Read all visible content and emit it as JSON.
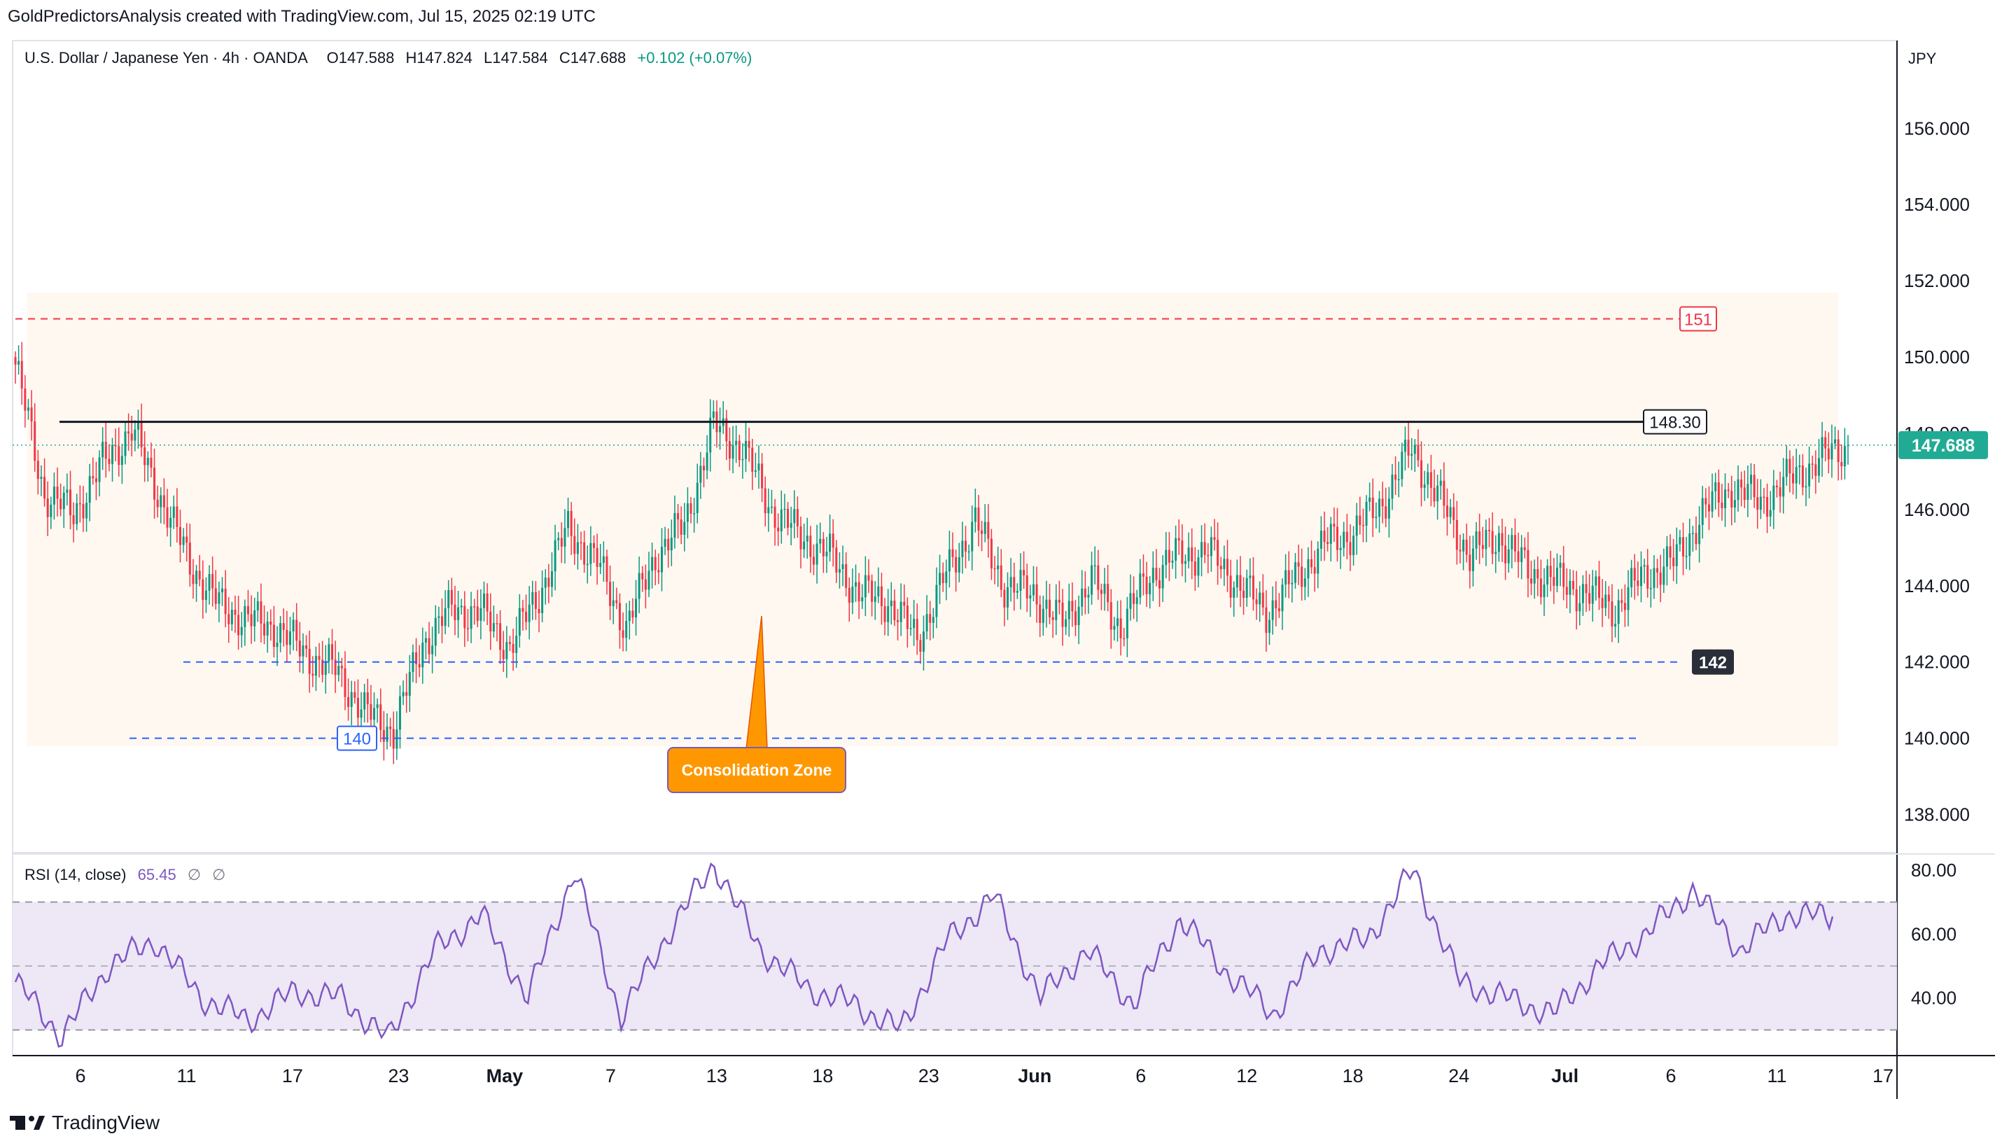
{
  "header": {
    "attribution": "GoldPredictorsAnalysis created with TradingView.com, Jul 15, 2025 02:19 UTC"
  },
  "legend": {
    "symbol": "U.S. Dollar / Japanese Yen · 4h · OANDA",
    "open": "O147.588",
    "high": "H147.824",
    "low": "L147.584",
    "close": "C147.688",
    "change": "+0.102 (+0.07%)"
  },
  "currency": "JPY",
  "rsi_legend": {
    "label": "RSI (14, close)",
    "value": "65.45",
    "na1": "∅",
    "na2": "∅"
  },
  "footer": {
    "logo_text": "TradingView",
    "logo_mark": "17"
  },
  "colors": {
    "up": "#089981",
    "down": "#f23645",
    "rsi_line": "#7e57c2",
    "rsi_band": "#ede7f6",
    "zone": "#fff8f0",
    "annotation": "#ff9800",
    "support_line": "#2962ff",
    "resistance_line": "#f23645"
  },
  "chart_data": [
    {
      "type": "candlestick",
      "title": "U.S. Dollar / Japanese Yen · 4h · OANDA",
      "ylim": [
        137.0,
        158.3
      ],
      "y_ticks": [
        "156.000",
        "154.000",
        "152.000",
        "150.000",
        "148.000",
        "146.000",
        "144.000",
        "142.000",
        "140.000",
        "138.000"
      ],
      "x_ticks": [
        "6",
        "11",
        "17",
        "23",
        "May",
        "7",
        "13",
        "18",
        "23",
        "Jun",
        "6",
        "12",
        "18",
        "24",
        "Jul",
        "6",
        "11",
        "17"
      ],
      "last_price": "147.688",
      "series": [
        {
          "x": "Apr 2",
          "y": 149.8
        },
        {
          "x": "Apr 3",
          "y": 146.4
        },
        {
          "x": "Apr 4",
          "y": 145.9
        },
        {
          "x": "Apr 6",
          "y": 147.2
        },
        {
          "x": "Apr 8",
          "y": 148.1
        },
        {
          "x": "Apr 9",
          "y": 146.3
        },
        {
          "x": "Apr 10",
          "y": 144.6
        },
        {
          "x": "Apr 11",
          "y": 143.5
        },
        {
          "x": "Apr 13",
          "y": 143.1
        },
        {
          "x": "Apr 15",
          "y": 142.9
        },
        {
          "x": "Apr 17",
          "y": 142.2
        },
        {
          "x": "Apr 19",
          "y": 141.8
        },
        {
          "x": "Apr 21",
          "y": 140.7
        },
        {
          "x": "Apr 22",
          "y": 140.2
        },
        {
          "x": "Apr 24",
          "y": 142.5
        },
        {
          "x": "Apr 26",
          "y": 143.4
        },
        {
          "x": "Apr 28",
          "y": 143.3
        },
        {
          "x": "Apr 30",
          "y": 142.4
        },
        {
          "x": "May 2",
          "y": 143.8
        },
        {
          "x": "May 3",
          "y": 145.5
        },
        {
          "x": "May 5",
          "y": 144.6
        },
        {
          "x": "May 7",
          "y": 142.9
        },
        {
          "x": "May 9",
          "y": 144.8
        },
        {
          "x": "May 10",
          "y": 145.6
        },
        {
          "x": "May 12",
          "y": 148.2
        },
        {
          "x": "May 13",
          "y": 147.6
        },
        {
          "x": "May 15",
          "y": 146.0
        },
        {
          "x": "May 17",
          "y": 145.3
        },
        {
          "x": "May 19",
          "y": 144.8
        },
        {
          "x": "May 21",
          "y": 143.8
        },
        {
          "x": "May 23",
          "y": 143.6
        },
        {
          "x": "May 25",
          "y": 142.6
        },
        {
          "x": "May 27",
          "y": 144.3
        },
        {
          "x": "May 28",
          "y": 145.7
        },
        {
          "x": "May 30",
          "y": 144.0
        },
        {
          "x": "Jun 1",
          "y": 143.8
        },
        {
          "x": "Jun 3",
          "y": 143.0
        },
        {
          "x": "Jun 4",
          "y": 144.2
        },
        {
          "x": "Jun 5",
          "y": 142.9
        },
        {
          "x": "Jun 7",
          "y": 144.3
        },
        {
          "x": "Jun 9",
          "y": 144.8
        },
        {
          "x": "Jun 11",
          "y": 144.9
        },
        {
          "x": "Jun 13",
          "y": 144.1
        },
        {
          "x": "Jun 14",
          "y": 143.3
        },
        {
          "x": "Jun 16",
          "y": 144.2
        },
        {
          "x": "Jun 18",
          "y": 145.1
        },
        {
          "x": "Jun 20",
          "y": 145.4
        },
        {
          "x": "Jun 22",
          "y": 146.2
        },
        {
          "x": "Jun 23",
          "y": 147.6
        },
        {
          "x": "Jun 24",
          "y": 146.2
        },
        {
          "x": "Jun 25",
          "y": 144.8
        },
        {
          "x": "Jun 27",
          "y": 145.3
        },
        {
          "x": "Jun 28",
          "y": 144.4
        },
        {
          "x": "Jun 30",
          "y": 144.1
        },
        {
          "x": "Jul 2",
          "y": 143.8
        },
        {
          "x": "Jul 3",
          "y": 143.4
        },
        {
          "x": "Jul 4",
          "y": 144.3
        },
        {
          "x": "Jul 6",
          "y": 144.6
        },
        {
          "x": "Jul 7",
          "y": 145.9
        },
        {
          "x": "Jul 8",
          "y": 146.6
        },
        {
          "x": "Jul 10",
          "y": 146.2
        },
        {
          "x": "Jul 11",
          "y": 146.8
        },
        {
          "x": "Jul 13",
          "y": 147.3
        },
        {
          "x": "Jul 14",
          "y": 147.688
        }
      ],
      "levels": [
        {
          "label": "151",
          "value": 151.0,
          "style": "dashed",
          "color": "#f23645"
        },
        {
          "label": "148.30",
          "value": 148.3,
          "style": "solid",
          "color": "#131722"
        },
        {
          "label": "142",
          "value": 142.0,
          "style": "dashed",
          "color": "#2962ff"
        },
        {
          "label": "140",
          "value": 140.0,
          "style": "dashed",
          "color": "#2962ff"
        }
      ],
      "annotations": [
        {
          "text": "Consolidation Zone"
        }
      ]
    },
    {
      "type": "line",
      "title": "RSI (14, close)",
      "ylim": [
        22,
        85
      ],
      "y_ticks": [
        "80.00",
        "60.00",
        "40.00"
      ],
      "band": [
        30,
        70
      ],
      "series": [
        {
          "x": "Apr 2",
          "y": 45
        },
        {
          "x": "Apr 4",
          "y": 28
        },
        {
          "x": "Apr 6",
          "y": 50
        },
        {
          "x": "Apr 8",
          "y": 58
        },
        {
          "x": "Apr 10",
          "y": 40
        },
        {
          "x": "Apr 12",
          "y": 33
        },
        {
          "x": "Apr 15",
          "y": 42
        },
        {
          "x": "Apr 19",
          "y": 40
        },
        {
          "x": "Apr 22",
          "y": 27
        },
        {
          "x": "Apr 24",
          "y": 55
        },
        {
          "x": "Apr 26",
          "y": 66
        },
        {
          "x": "Apr 30",
          "y": 40
        },
        {
          "x": "May 3",
          "y": 80
        },
        {
          "x": "May 7",
          "y": 34
        },
        {
          "x": "May 10",
          "y": 60
        },
        {
          "x": "May 12",
          "y": 82
        },
        {
          "x": "May 15",
          "y": 55
        },
        {
          "x": "May 19",
          "y": 43
        },
        {
          "x": "May 23",
          "y": 38
        },
        {
          "x": "May 25",
          "y": 30
        },
        {
          "x": "May 27",
          "y": 58
        },
        {
          "x": "May 28",
          "y": 72
        },
        {
          "x": "Jun 2",
          "y": 40
        },
        {
          "x": "Jun 4",
          "y": 55
        },
        {
          "x": "Jun 5",
          "y": 38
        },
        {
          "x": "Jun 9",
          "y": 65
        },
        {
          "x": "Jun 13",
          "y": 48
        },
        {
          "x": "Jun 14",
          "y": 35
        },
        {
          "x": "Jun 16",
          "y": 55
        },
        {
          "x": "Jun 20",
          "y": 58
        },
        {
          "x": "Jun 23",
          "y": 80
        },
        {
          "x": "Jun 25",
          "y": 45
        },
        {
          "x": "Jun 28",
          "y": 40
        },
        {
          "x": "Jul 2",
          "y": 35
        },
        {
          "x": "Jul 4",
          "y": 50
        },
        {
          "x": "Jul 6",
          "y": 60
        },
        {
          "x": "Jul 8",
          "y": 74
        },
        {
          "x": "Jul 10",
          "y": 55
        },
        {
          "x": "Jul 12",
          "y": 66
        },
        {
          "x": "Jul 14",
          "y": 65.45
        }
      ]
    }
  ]
}
